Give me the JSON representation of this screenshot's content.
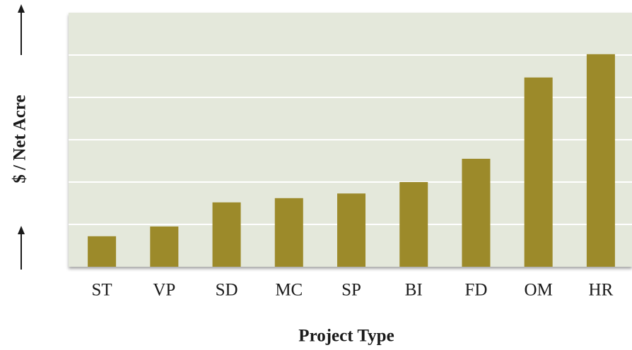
{
  "chart_data": {
    "type": "bar",
    "x_label": "Project Type",
    "y_label": "$ / Net Acre",
    "categories": [
      "ST",
      "VP",
      "SD",
      "MC",
      "SP",
      "BI",
      "FD",
      "OM",
      "HR"
    ],
    "values": [
      0.72,
      0.95,
      1.52,
      1.62,
      1.73,
      2.0,
      2.55,
      4.47,
      5.02
    ],
    "color": "#9c8a2a",
    "ylim": [
      0,
      6
    ],
    "yticks": [
      1,
      2,
      3,
      4,
      5
    ],
    "tick_labels": false,
    "grid": true
  }
}
